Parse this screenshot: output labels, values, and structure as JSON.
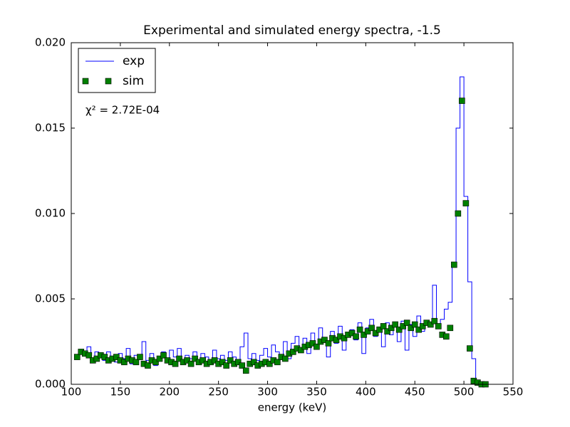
{
  "chart_data": {
    "type": "line",
    "title": "Experimental and simulated energy spectra, -1.5",
    "xlabel": "energy (keV)",
    "annotation": "χ² = 2.72E-04",
    "legend": "upper left",
    "xlim": [
      100,
      550
    ],
    "ylim": [
      0,
      0.02
    ],
    "xticks": [
      100,
      150,
      200,
      250,
      300,
      350,
      400,
      450,
      500,
      550
    ],
    "yticks": [
      {
        "value": 0,
        "label": "0.000"
      },
      {
        "value": 0.005,
        "label": "0.005"
      },
      {
        "value": 0.01,
        "label": "0.010"
      },
      {
        "value": 0.015,
        "label": "0.015"
      },
      {
        "value": 0.02,
        "label": "0.020"
      }
    ],
    "x": [
      106,
      110,
      114,
      118,
      122,
      126,
      130,
      134,
      138,
      142,
      146,
      150,
      154,
      158,
      162,
      166,
      170,
      174,
      178,
      182,
      186,
      190,
      194,
      198,
      202,
      206,
      210,
      214,
      218,
      222,
      226,
      230,
      234,
      238,
      242,
      246,
      250,
      254,
      258,
      262,
      266,
      270,
      274,
      278,
      282,
      286,
      290,
      294,
      298,
      302,
      306,
      310,
      314,
      318,
      322,
      326,
      330,
      334,
      338,
      342,
      346,
      350,
      354,
      358,
      362,
      366,
      370,
      374,
      378,
      382,
      386,
      390,
      394,
      398,
      402,
      406,
      410,
      414,
      418,
      422,
      426,
      430,
      434,
      438,
      442,
      446,
      450,
      454,
      458,
      462,
      466,
      470,
      474,
      478,
      482,
      486,
      490,
      494,
      498,
      502,
      506,
      510,
      514,
      518,
      522
    ],
    "series": [
      {
        "name": "exp",
        "color": "#0000ff",
        "drawstyle": "steps-mid",
        "values": [
          0.0016,
          0.002,
          0.0018,
          0.0022,
          0.0015,
          0.0019,
          0.0017,
          0.0014,
          0.0019,
          0.0016,
          0.0013,
          0.0018,
          0.0015,
          0.0021,
          0.0012,
          0.0017,
          0.0015,
          0.0025,
          0.0014,
          0.0018,
          0.0011,
          0.0016,
          0.0019,
          0.0013,
          0.002,
          0.0016,
          0.0021,
          0.0012,
          0.0017,
          0.0015,
          0.0019,
          0.0014,
          0.0018,
          0.0016,
          0.0013,
          0.002,
          0.0015,
          0.0017,
          0.0014,
          0.0019,
          0.0016,
          0.0013,
          0.0022,
          0.003,
          0.0015,
          0.0018,
          0.0014,
          0.0017,
          0.0021,
          0.0016,
          0.0023,
          0.0019,
          0.0017,
          0.0025,
          0.0015,
          0.0024,
          0.0028,
          0.002,
          0.0027,
          0.0018,
          0.003,
          0.0022,
          0.0033,
          0.0025,
          0.0016,
          0.0031,
          0.0024,
          0.0034,
          0.002,
          0.0029,
          0.0032,
          0.0026,
          0.0036,
          0.0018,
          0.0033,
          0.0038,
          0.0028,
          0.0031,
          0.0022,
          0.0036,
          0.0029,
          0.0034,
          0.0025,
          0.0037,
          0.002,
          0.0035,
          0.0028,
          0.004,
          0.0031,
          0.0037,
          0.0034,
          0.0058,
          0.0033,
          0.0038,
          0.0044,
          0.0048,
          0.007,
          0.015,
          0.018,
          0.011,
          0.006,
          0.0015,
          0.0002,
          0,
          0
        ]
      },
      {
        "name": "sim",
        "color": "#008000",
        "marker": "s",
        "values": [
          0.0016,
          0.0019,
          0.0018,
          0.0017,
          0.0014,
          0.0015,
          0.0017,
          0.0016,
          0.0014,
          0.0015,
          0.0016,
          0.0014,
          0.0013,
          0.0015,
          0.0014,
          0.0013,
          0.0016,
          0.0012,
          0.0011,
          0.0014,
          0.0013,
          0.0015,
          0.0017,
          0.0014,
          0.0013,
          0.0012,
          0.0015,
          0.0013,
          0.0014,
          0.0012,
          0.0015,
          0.0013,
          0.0014,
          0.0012,
          0.0013,
          0.0014,
          0.0012,
          0.0013,
          0.0011,
          0.0014,
          0.0012,
          0.0013,
          0.0011,
          0.0008,
          0.0012,
          0.0013,
          0.0011,
          0.0012,
          0.0013,
          0.0012,
          0.0014,
          0.0013,
          0.0016,
          0.0015,
          0.0018,
          0.0019,
          0.0021,
          0.002,
          0.0022,
          0.0023,
          0.0024,
          0.0022,
          0.0025,
          0.0026,
          0.0024,
          0.0027,
          0.0026,
          0.0028,
          0.0027,
          0.0029,
          0.003,
          0.0028,
          0.0032,
          0.0029,
          0.0031,
          0.0033,
          0.003,
          0.0032,
          0.0034,
          0.0031,
          0.0033,
          0.0035,
          0.0032,
          0.0034,
          0.0036,
          0.0033,
          0.0035,
          0.0032,
          0.0034,
          0.0036,
          0.0035,
          0.0037,
          0.0034,
          0.0029,
          0.0028,
          0.0033,
          0.007,
          0.01,
          0.0166,
          0.0106,
          0.0021,
          0.0002,
          0.0001,
          0,
          0
        ]
      }
    ]
  }
}
